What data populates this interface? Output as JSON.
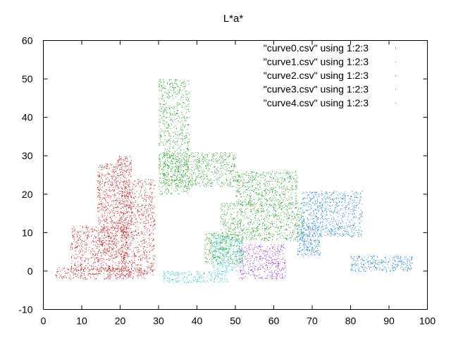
{
  "chart_data": {
    "type": "scatter",
    "title": "L*a*",
    "xlabel": "",
    "ylabel": "",
    "xlim": [
      0,
      100
    ],
    "ylim": [
      -10,
      60
    ],
    "x_ticks": [
      "0",
      "10",
      "20",
      "30",
      "40",
      "50",
      "60",
      "70",
      "80",
      "90",
      "100"
    ],
    "y_ticks": [
      "-10",
      "0",
      "10",
      "20",
      "30",
      "40",
      "50",
      "60"
    ],
    "grid": false,
    "legend_position": "top-right",
    "series": [
      {
        "name": "\"curve0.csv\" using 1:2:3",
        "color": "#c0201e",
        "clusters": [
          {
            "x": [
              3,
              27
            ],
            "y": [
              -2,
              1
            ]
          },
          {
            "x": [
              7,
              22
            ],
            "y": [
              0,
              12
            ]
          },
          {
            "x": [
              14,
              19
            ],
            "y": [
              5,
              28
            ]
          },
          {
            "x": [
              19,
              23
            ],
            "y": [
              10,
              30
            ]
          }
        ]
      },
      {
        "name": "\"curve1.csv\" using 1:2:3",
        "color": "#c0201e",
        "clusters": [
          {
            "x": [
              20,
              29
            ],
            "y": [
              -1,
              24
            ]
          }
        ]
      },
      {
        "name": "\"curve2.csv\" using 1:2:3",
        "color": "#1fa01f",
        "clusters": [
          {
            "x": [
              30,
              38
            ],
            "y": [
              20,
              50
            ]
          },
          {
            "x": [
              46,
              68
            ],
            "y": [
              8,
              18
            ]
          },
          {
            "x": [
              50,
              66
            ],
            "y": [
              17,
              26
            ]
          },
          {
            "x": [
              31,
              50
            ],
            "y": [
              22,
              31
            ]
          },
          {
            "x": [
              42,
              52
            ],
            "y": [
              2,
              10
            ]
          }
        ]
      },
      {
        "name": "\"curve3.csv\" using 1:2:3",
        "color": "#1a7fe0",
        "clusters": [
          {
            "x": [
              67,
              83
            ],
            "y": [
              9,
              21
            ]
          },
          {
            "x": [
              66,
              72
            ],
            "y": [
              4,
              12
            ]
          },
          {
            "x": [
              80,
              96
            ],
            "y": [
              0,
              4
            ]
          }
        ]
      },
      {
        "name": "\"curve4.csv\" using 1:2:3",
        "color": "#9b36d8",
        "clusters": [
          {
            "x": [
              51,
              63
            ],
            "y": [
              -2,
              7
            ]
          }
        ]
      },
      {
        "name": "",
        "color": "#39c9d8",
        "clusters": [
          {
            "x": [
              31,
              48
            ],
            "y": [
              -3,
              0
            ]
          },
          {
            "x": [
              44,
              52
            ],
            "y": [
              0,
              9
            ]
          }
        ]
      }
    ]
  }
}
